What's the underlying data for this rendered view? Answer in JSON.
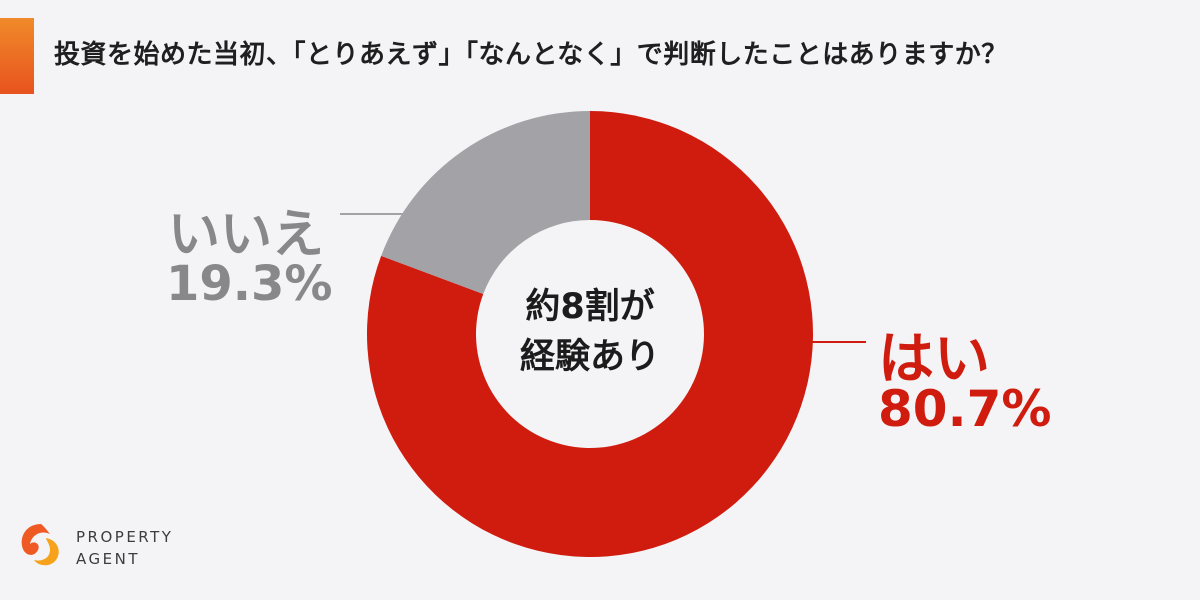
{
  "title": "投資を始めた当初、「とりあえず」「なんとなく」で判断したことはありますか？",
  "center_label": {
    "line1": "約8割が",
    "line2": "経験あり"
  },
  "logo": {
    "line1": "PROPERTY",
    "line2": "AGENT"
  },
  "colors": {
    "yes": "#cf1c0e",
    "no": "#a3a2a6",
    "accent": "#ec6a22",
    "background": "#f4f3f5"
  },
  "chart_data": {
    "type": "pie",
    "variant": "donut",
    "title": "投資を始めた当初、「とりあえず」「なんとなく」で判断したことはありますか？",
    "slices": [
      {
        "label": "はい",
        "value": 80.7,
        "value_label": "80.7%",
        "color": "#cf1c0e"
      },
      {
        "label": "いいえ",
        "value": 19.3,
        "value_label": "19.3%",
        "color": "#a3a2a6"
      }
    ],
    "start": "top",
    "direction": "clockwise",
    "center_text": "約8割が 経験あり"
  }
}
